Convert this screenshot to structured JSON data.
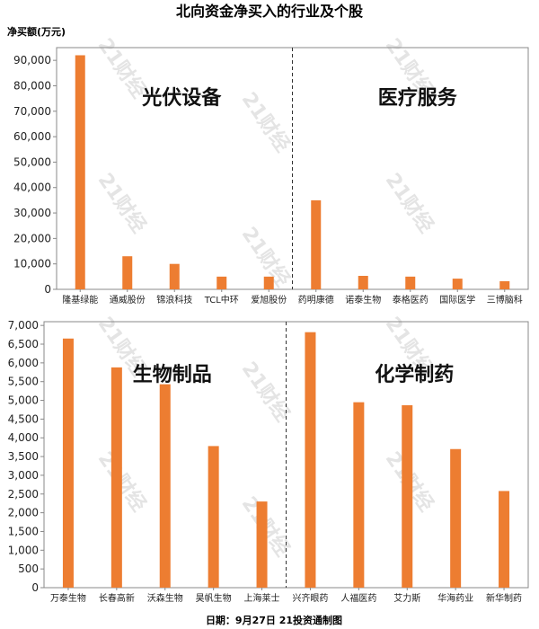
{
  "title": "北向资金净买入的行业及个股",
  "ylabel": "净买额(万元)",
  "source": "日期：9月27日 21投资通制图",
  "watermark": "21财经",
  "colors": {
    "bar": "#ED7D31",
    "axis": "#888888",
    "divider": "#333333"
  },
  "chart_data": [
    {
      "type": "bar",
      "ylim": [
        0,
        95000
      ],
      "yticks": [
        0,
        10000,
        20000,
        30000,
        40000,
        50000,
        60000,
        70000,
        80000,
        90000
      ],
      "ytick_labels": [
        "0",
        "10,000",
        "20,000",
        "30,000",
        "40,000",
        "50,000",
        "60,000",
        "70,000",
        "80,000",
        "90,000"
      ],
      "groups": [
        {
          "label": "光伏设备",
          "categories": [
            "隆基绿能",
            "通威股份",
            "锦浪科技",
            "TCL中环",
            "爱旭股份"
          ],
          "values": [
            92000,
            13000,
            10000,
            5000,
            5000
          ]
        },
        {
          "label": "医疗服务",
          "categories": [
            "药明康德",
            "诺泰生物",
            "泰格医药",
            "国际医学",
            "三博脑科"
          ],
          "values": [
            35000,
            5300,
            5000,
            4200,
            3200
          ]
        }
      ]
    },
    {
      "type": "bar",
      "ylim": [
        0,
        7100
      ],
      "yticks": [
        0,
        500,
        1000,
        1500,
        2000,
        2500,
        3000,
        3500,
        4000,
        4500,
        5000,
        5500,
        6000,
        6500,
        7000
      ],
      "ytick_labels": [
        "0",
        "500",
        "1,000",
        "1,500",
        "2,000",
        "2,500",
        "3,000",
        "3,500",
        "4,000",
        "4,500",
        "5,000",
        "5,500",
        "6,000",
        "6,500",
        "7,000"
      ],
      "groups": [
        {
          "label": "生物制品",
          "categories": [
            "万泰生物",
            "长春高新",
            "沃森生物",
            "昊帆生物",
            "上海莱士"
          ],
          "values": [
            6650,
            5880,
            5430,
            3780,
            2300
          ]
        },
        {
          "label": "化学制药",
          "categories": [
            "兴齐眼药",
            "人福医药",
            "艾力斯",
            "华海药业",
            "新华制药"
          ],
          "values": [
            6820,
            4950,
            4870,
            3700,
            2580
          ]
        }
      ]
    }
  ]
}
